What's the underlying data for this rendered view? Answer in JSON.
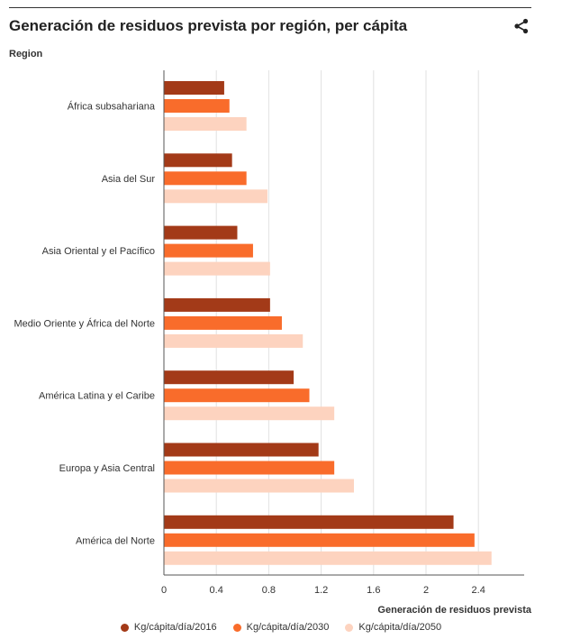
{
  "header": {
    "title": "Generación de residuos prevista por región, per cápita",
    "share_icon": "share-icon"
  },
  "chart_data": {
    "type": "bar",
    "orientation": "horizontal",
    "title": "Generación de residuos prevista por región, per cápita",
    "ylabel": "Region",
    "xlabel": "Generación de residuos prevista",
    "categories": [
      "África subsahariana",
      "Asia del Sur",
      "Asia Oriental y el Pacífico",
      "Medio Oriente y África del Norte",
      "América Latina y el Caribe",
      "Europa y Asia Central",
      "América del Norte"
    ],
    "series": [
      {
        "name": "Kg/cápita/día/2016",
        "color": "#a33a18",
        "values": [
          0.46,
          0.52,
          0.56,
          0.81,
          0.99,
          1.18,
          2.21
        ]
      },
      {
        "name": "Kg/cápita/día/2030",
        "color": "#f96c2b",
        "values": [
          0.5,
          0.63,
          0.68,
          0.9,
          1.11,
          1.3,
          2.37
        ]
      },
      {
        "name": "Kg/cápita/día/2050",
        "color": "#fdd3bf",
        "values": [
          0.63,
          0.79,
          0.81,
          1.06,
          1.3,
          1.45,
          2.5
        ]
      }
    ],
    "xlim": [
      0,
      2.75
    ],
    "xticks": [
      "0",
      "0.4",
      "0.8",
      "1.2",
      "1.6",
      "2",
      "2.4"
    ],
    "grid": true,
    "legend_position": "bottom"
  }
}
